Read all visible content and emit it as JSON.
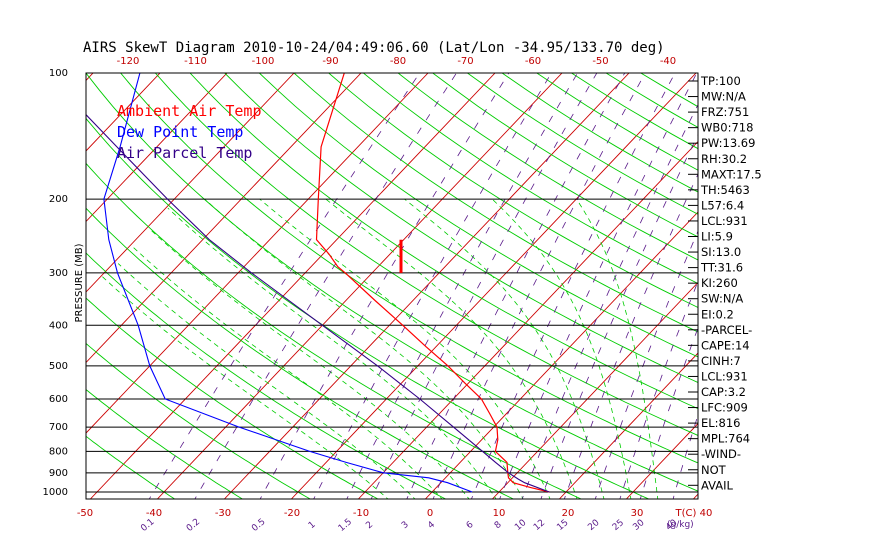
{
  "title": "AIRS SkewT Diagram 2010-10-24/04:49:06.60 (Lat/Lon -34.95/133.70 deg)",
  "colors": {
    "ambient": "#ff0000",
    "dewpoint": "#0000ff",
    "parcel": "#330088",
    "isotherm": "#cc0000",
    "dry_adiabat": "#00cc00",
    "moist_adiabat": "#00cc00",
    "mixing_ratio": "#5a1a8a",
    "isobar": "#000000"
  },
  "legend": [
    {
      "label": "Ambient Air Temp",
      "color": "#ff0000"
    },
    {
      "label": "Dew Point Temp",
      "color": "#0000ff"
    },
    {
      "label": "Air Parcel Temp",
      "color": "#330088"
    }
  ],
  "indices": [
    "TP:100",
    "MW:N/A",
    "FRZ:751",
    "WB0:718",
    "PW:13.69",
    "RH:30.2",
    "MAXT:17.5",
    "TH:5463",
    "L57:6.4",
    "LCL:931",
    "LI:5.9",
    "SI:13.0",
    "TT:31.6",
    "KI:260",
    "SW:N/A",
    "EI:0.2",
    "-PARCEL-",
    "CAPE:14",
    "CINH:7",
    "LCL:931",
    "CAP:3.2",
    "LFC:909",
    "EL:816",
    "MPL:764",
    "-WIND-",
    "NOT",
    "AVAIL"
  ],
  "chart_data": {
    "type": "line",
    "title": "AIRS SkewT Diagram 2010-10-24/04:49:06.60 (Lat/Lon -34.95/133.70 deg)",
    "ylabel": "PRESSURE (MB)",
    "xlabel": "T(C)",
    "mixing_ratio_label": "(g/kg)",
    "y_scale": "log",
    "ylim": [
      1050,
      100
    ],
    "pressure_ticks": [
      100,
      200,
      300,
      400,
      500,
      600,
      700,
      800,
      900,
      1000
    ],
    "bottom_temp_ticks": [
      -50,
      -40,
      -30,
      -20,
      -10,
      0,
      10,
      20,
      30,
      40
    ],
    "top_temp_ticks": [
      -120,
      -110,
      -100,
      -90,
      -80,
      -70,
      -60,
      -50,
      -40
    ],
    "mixing_ratio_ticks": [
      0.1,
      0.2,
      0.5,
      1,
      1.5,
      2,
      3,
      4,
      6,
      8,
      10,
      12,
      15,
      20,
      25,
      30,
      40
    ],
    "mixing_ratio_tick_labels": [
      "0.1",
      "0.2",
      "0.5",
      "1",
      "1.5",
      "2",
      "3",
      "4",
      "6",
      "8",
      "10",
      "12",
      "15",
      "20",
      "25",
      "30",
      "40"
    ],
    "series": [
      {
        "name": "Ambient Air Temp",
        "color": "#ff0000",
        "points": [
          {
            "p": 1000,
            "t": 17.5
          },
          {
            "p": 975,
            "t": 14.0
          },
          {
            "p": 950,
            "t": 10.8
          },
          {
            "p": 925,
            "t": 9.4
          },
          {
            "p": 900,
            "t": 8.6
          },
          {
            "p": 850,
            "t": 7.0
          },
          {
            "p": 800,
            "t": 3.7
          },
          {
            "p": 750,
            "t": 2.4
          },
          {
            "p": 700,
            "t": 0.5
          },
          {
            "p": 650,
            "t": -2.5
          },
          {
            "p": 600,
            "t": -5.8
          },
          {
            "p": 550,
            "t": -10.5
          },
          {
            "p": 500,
            "t": -15.5
          },
          {
            "p": 450,
            "t": -21.5
          },
          {
            "p": 400,
            "t": -28.0
          },
          {
            "p": 350,
            "t": -35.5
          },
          {
            "p": 300,
            "t": -44.0
          },
          {
            "p": 290,
            "t": -46.0
          },
          {
            "p": 270,
            "t": -49.2
          },
          {
            "p": 250,
            "t": -53.0
          },
          {
            "p": 200,
            "t": -58.5
          },
          {
            "p": 150,
            "t": -65.5
          },
          {
            "p": 100,
            "t": -72.5
          }
        ]
      },
      {
        "name": "Dew Point Temp",
        "color": "#0000ff",
        "points": [
          {
            "p": 1000,
            "t": 6.0
          },
          {
            "p": 950,
            "t": 1.0
          },
          {
            "p": 925,
            "t": -2.5
          },
          {
            "p": 900,
            "t": -10.0
          },
          {
            "p": 850,
            "t": -17.0
          },
          {
            "p": 800,
            "t": -24.0
          },
          {
            "p": 700,
            "t": -38.0
          },
          {
            "p": 600,
            "t": -53.0
          },
          {
            "p": 500,
            "t": -60.0
          },
          {
            "p": 400,
            "t": -67.5
          },
          {
            "p": 300,
            "t": -78.0
          },
          {
            "p": 250,
            "t": -84.0
          },
          {
            "p": 200,
            "t": -90.5
          },
          {
            "p": 150,
            "t": -95.5
          },
          {
            "p": 100,
            "t": -103.0
          }
        ]
      },
      {
        "name": "Air Parcel Temp",
        "color": "#330088",
        "points": [
          {
            "p": 1000,
            "t": 17.5
          },
          {
            "p": 950,
            "t": 12.5
          },
          {
            "p": 931,
            "t": 11.0
          },
          {
            "p": 900,
            "t": 8.7
          },
          {
            "p": 850,
            "t": 5.3
          },
          {
            "p": 800,
            "t": 1.8
          },
          {
            "p": 700,
            "t": -6.0
          },
          {
            "p": 600,
            "t": -15.0
          },
          {
            "p": 500,
            "t": -26.0
          },
          {
            "p": 400,
            "t": -40.0
          },
          {
            "p": 300,
            "t": -58.0
          },
          {
            "p": 250,
            "t": -69.0
          },
          {
            "p": 200,
            "t": -81.0
          },
          {
            "p": 150,
            "t": -96.0
          },
          {
            "p": 100,
            "t": -117.0
          }
        ]
      }
    ],
    "grid": true
  }
}
